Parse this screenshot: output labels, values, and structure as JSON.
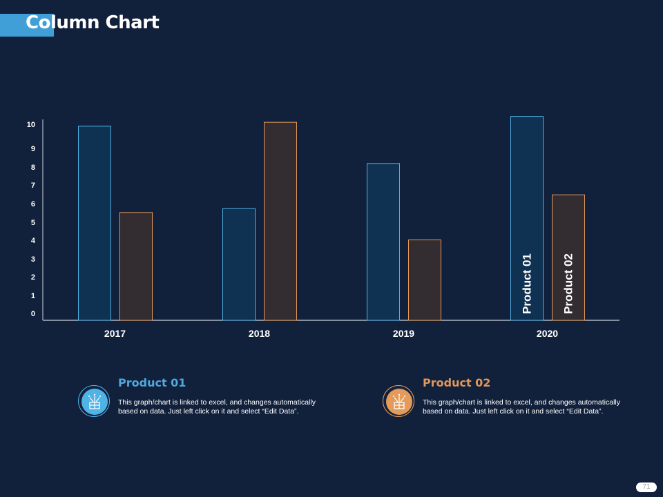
{
  "header": {
    "title": "Column Chart"
  },
  "colors": {
    "background": "#12213b",
    "accent": "#3f9fd6",
    "product01_stroke": "#4fb3e8",
    "product01_fill": "#0f3252",
    "product02_stroke": "#e39a5a",
    "product02_fill": "#332c30",
    "product01_title": "#4fa8de",
    "product02_title": "#e2965a"
  },
  "chart_data": {
    "type": "bar",
    "title": "Column Chart",
    "xlabel": "",
    "ylabel": "",
    "categories": [
      "2017",
      "2018",
      "2019",
      "2020"
    ],
    "series": [
      {
        "name": "Product 01",
        "values": [
          9.9,
          5.7,
          8.0,
          10.4
        ]
      },
      {
        "name": "Product 02",
        "values": [
          5.5,
          10.1,
          4.1,
          6.4
        ]
      }
    ],
    "yticks": [
      "0",
      "1",
      "2",
      "3",
      "4",
      "5",
      "6",
      "7",
      "8",
      "9",
      "10"
    ],
    "ylim": [
      0,
      10
    ],
    "grid": false,
    "bar_labels": {
      "category": "2020",
      "labels": [
        "Product 01",
        "Product 02"
      ]
    }
  },
  "cards": [
    {
      "title": "Product  01",
      "text": "This graph/chart is linked to excel, and changes automatically based on data. Just left click on it and select “Edit Data”.",
      "icon": "gift-box-sparkle-icon"
    },
    {
      "title": "Product  02",
      "text": "This graph/chart is linked to excel, and changes automatically based on data. Just left click on it and select “Edit Data”.",
      "icon": "gift-box-sparkle-icon"
    }
  ],
  "footer": {
    "page_number": "71"
  }
}
